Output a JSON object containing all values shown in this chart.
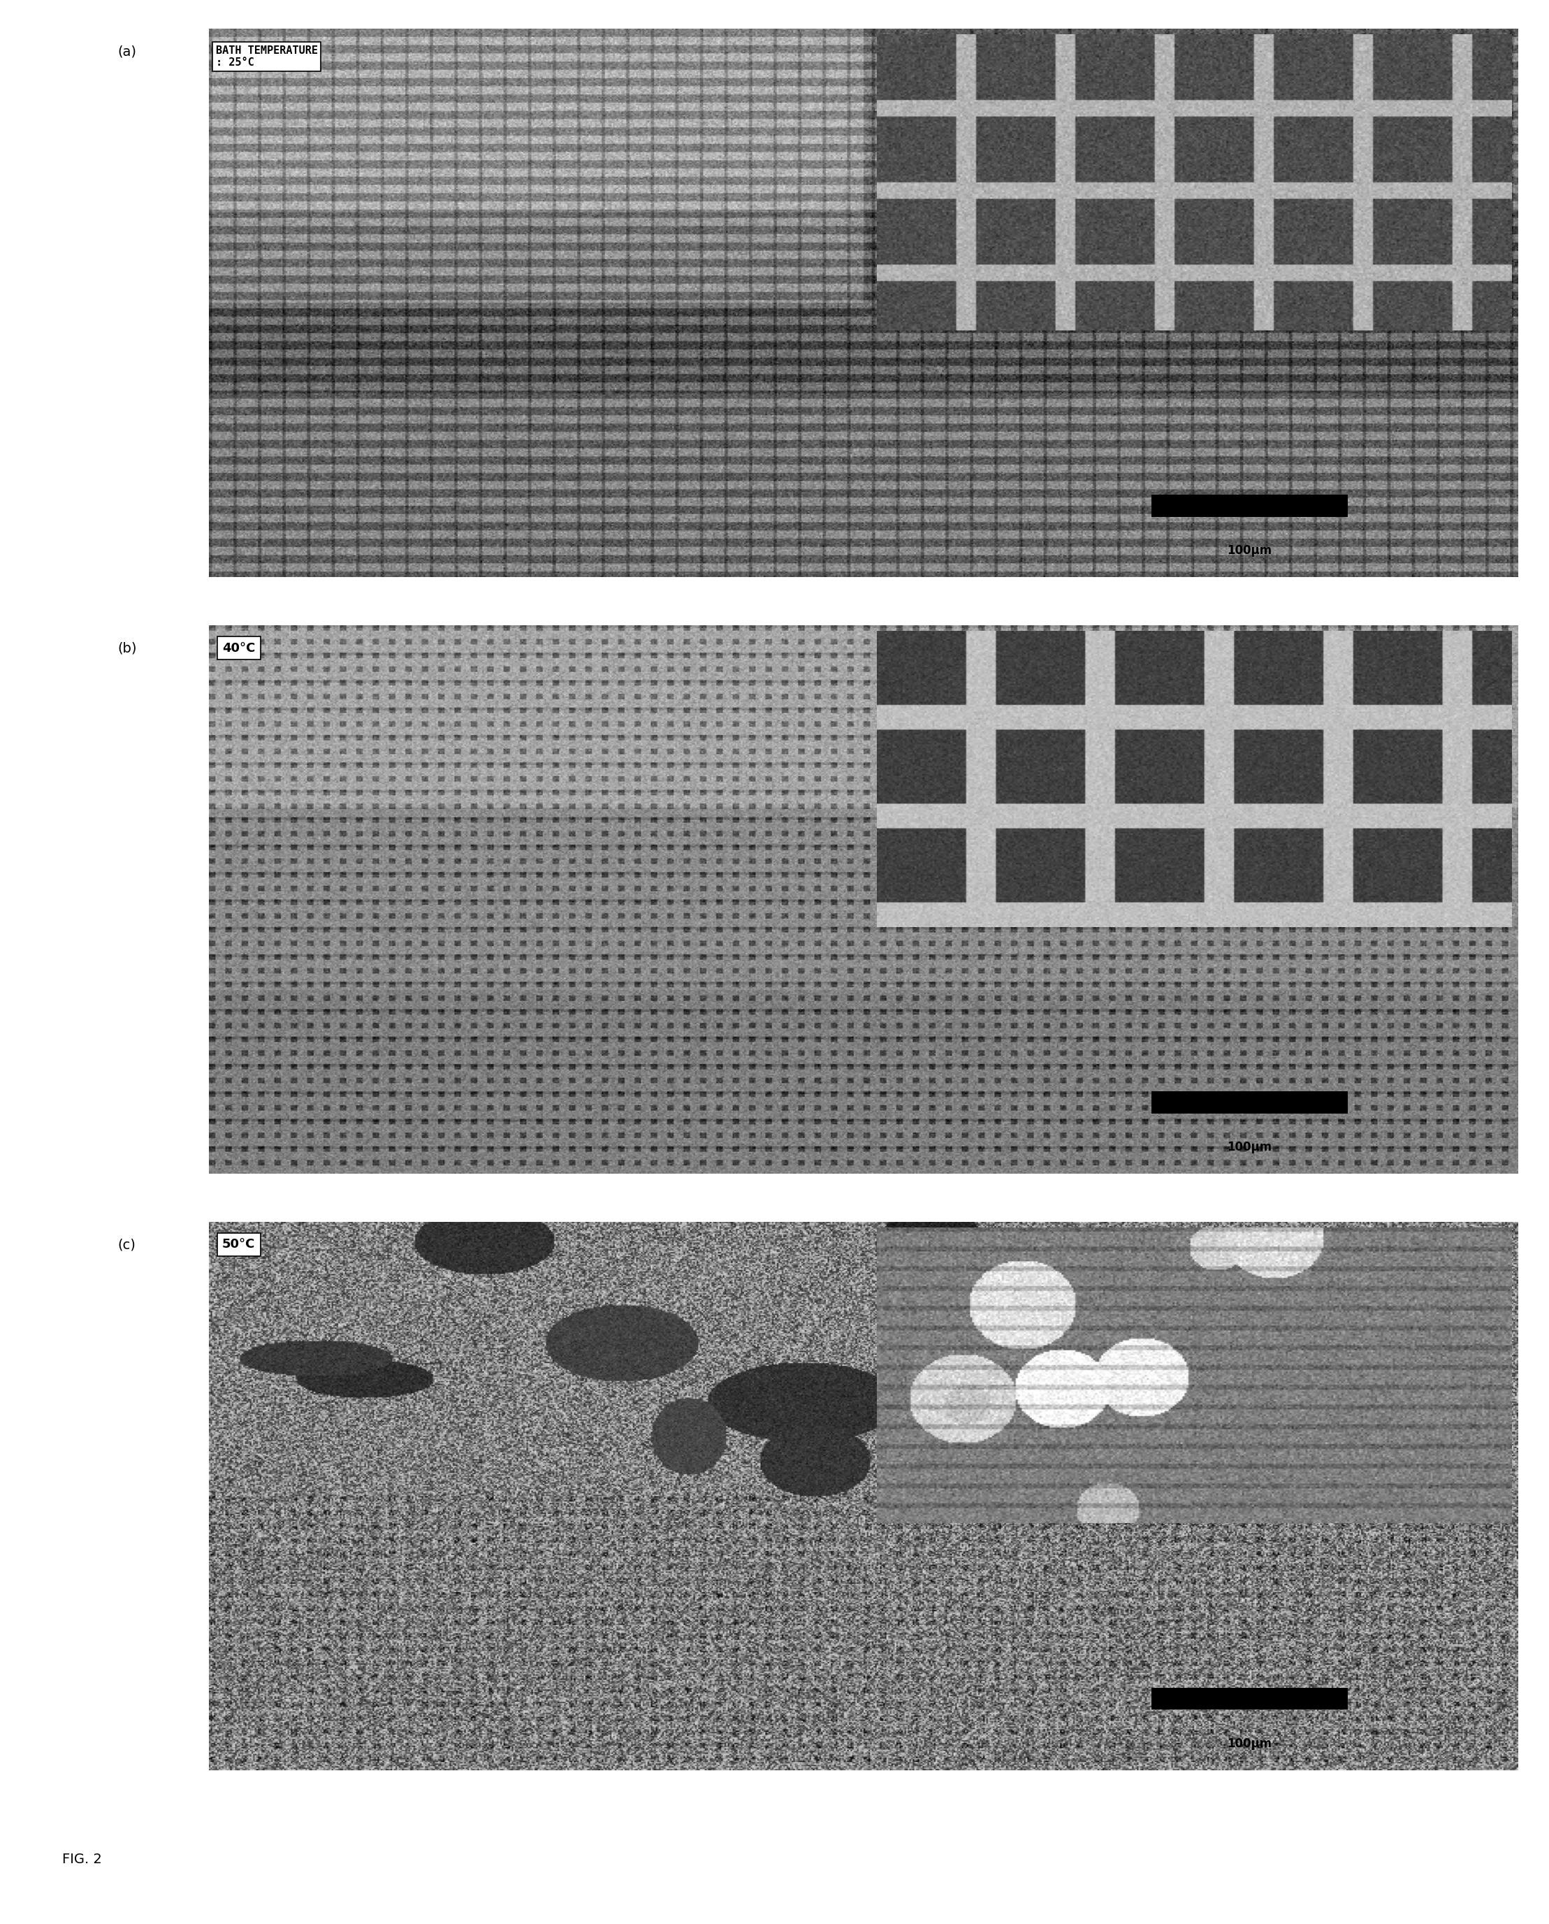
{
  "figure_label": "FIG. 2",
  "panels": [
    {
      "label": "(a)",
      "annotation_line1": "BATH TEMPERATURE",
      "annotation_line2": ": 25°C",
      "scale_text": "100μm",
      "main_texture": "coarse_grid_25",
      "inset_texture": "fine_grid_25"
    },
    {
      "label": "(b)",
      "annotation_line1": "40°C",
      "annotation_line2": "",
      "scale_text": "100μm",
      "main_texture": "coarse_grid_40",
      "inset_texture": "fine_grid_40"
    },
    {
      "label": "(c)",
      "annotation_line1": "50°C",
      "annotation_line2": "",
      "scale_text": "100μm",
      "main_texture": "coarse_grid_50",
      "inset_texture": "fine_grid_50"
    }
  ],
  "bg_color": "#ffffff",
  "panel_bg": "#888888",
  "inset_bg": "#aaaaaa",
  "annotation_bg": "#ffffff",
  "text_color": "#000000",
  "scale_bar_color": "#000000"
}
